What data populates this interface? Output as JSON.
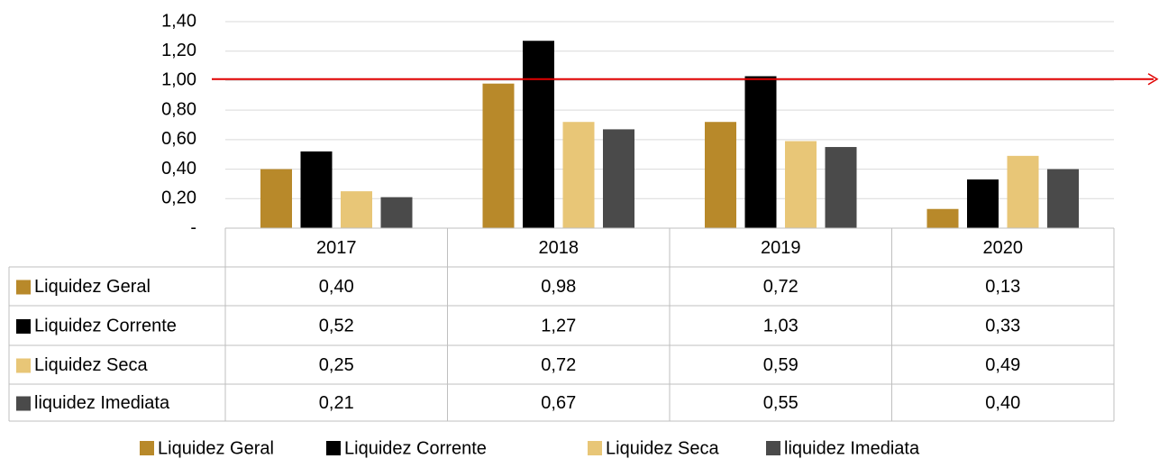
{
  "chart_data": {
    "type": "bar",
    "categories": [
      "2017",
      "2018",
      "2019",
      "2020"
    ],
    "series": [
      {
        "name": "Liquidez Geral",
        "color": "#b8892a",
        "values": [
          0.4,
          0.98,
          0.72,
          0.13
        ],
        "value_labels": [
          "0,40",
          "0,98",
          "0,72",
          "0,13"
        ]
      },
      {
        "name": "Liquidez Corrente",
        "color": "#000000",
        "values": [
          0.52,
          1.27,
          1.03,
          0.33
        ],
        "value_labels": [
          "0,52",
          "1,27",
          "1,03",
          "0,33"
        ]
      },
      {
        "name": "Liquidez Seca",
        "color": "#e8c677",
        "values": [
          0.25,
          0.72,
          0.59,
          0.49
        ],
        "value_labels": [
          "0,25",
          "0,72",
          "0,59",
          "0,49"
        ]
      },
      {
        "name": "liquidez Imediata",
        "color": "#4a4a4a",
        "values": [
          0.21,
          0.67,
          0.55,
          0.4
        ],
        "value_labels": [
          "0,21",
          "0,67",
          "0,55",
          "0,40"
        ]
      }
    ],
    "ylim": [
      0,
      1.4
    ],
    "yticks": [
      {
        "value": 0,
        "label": "-"
      },
      {
        "value": 0.2,
        "label": "0,20"
      },
      {
        "value": 0.4,
        "label": "0,40"
      },
      {
        "value": 0.6,
        "label": "0,60"
      },
      {
        "value": 0.8,
        "label": "0,80"
      },
      {
        "value": 1.0,
        "label": "1,00"
      },
      {
        "value": 1.2,
        "label": "1,20"
      },
      {
        "value": 1.4,
        "label": "1,40"
      }
    ],
    "grid": true,
    "reference_line": {
      "value": 1.01,
      "color": "#e00000"
    },
    "legend": "bottom"
  }
}
